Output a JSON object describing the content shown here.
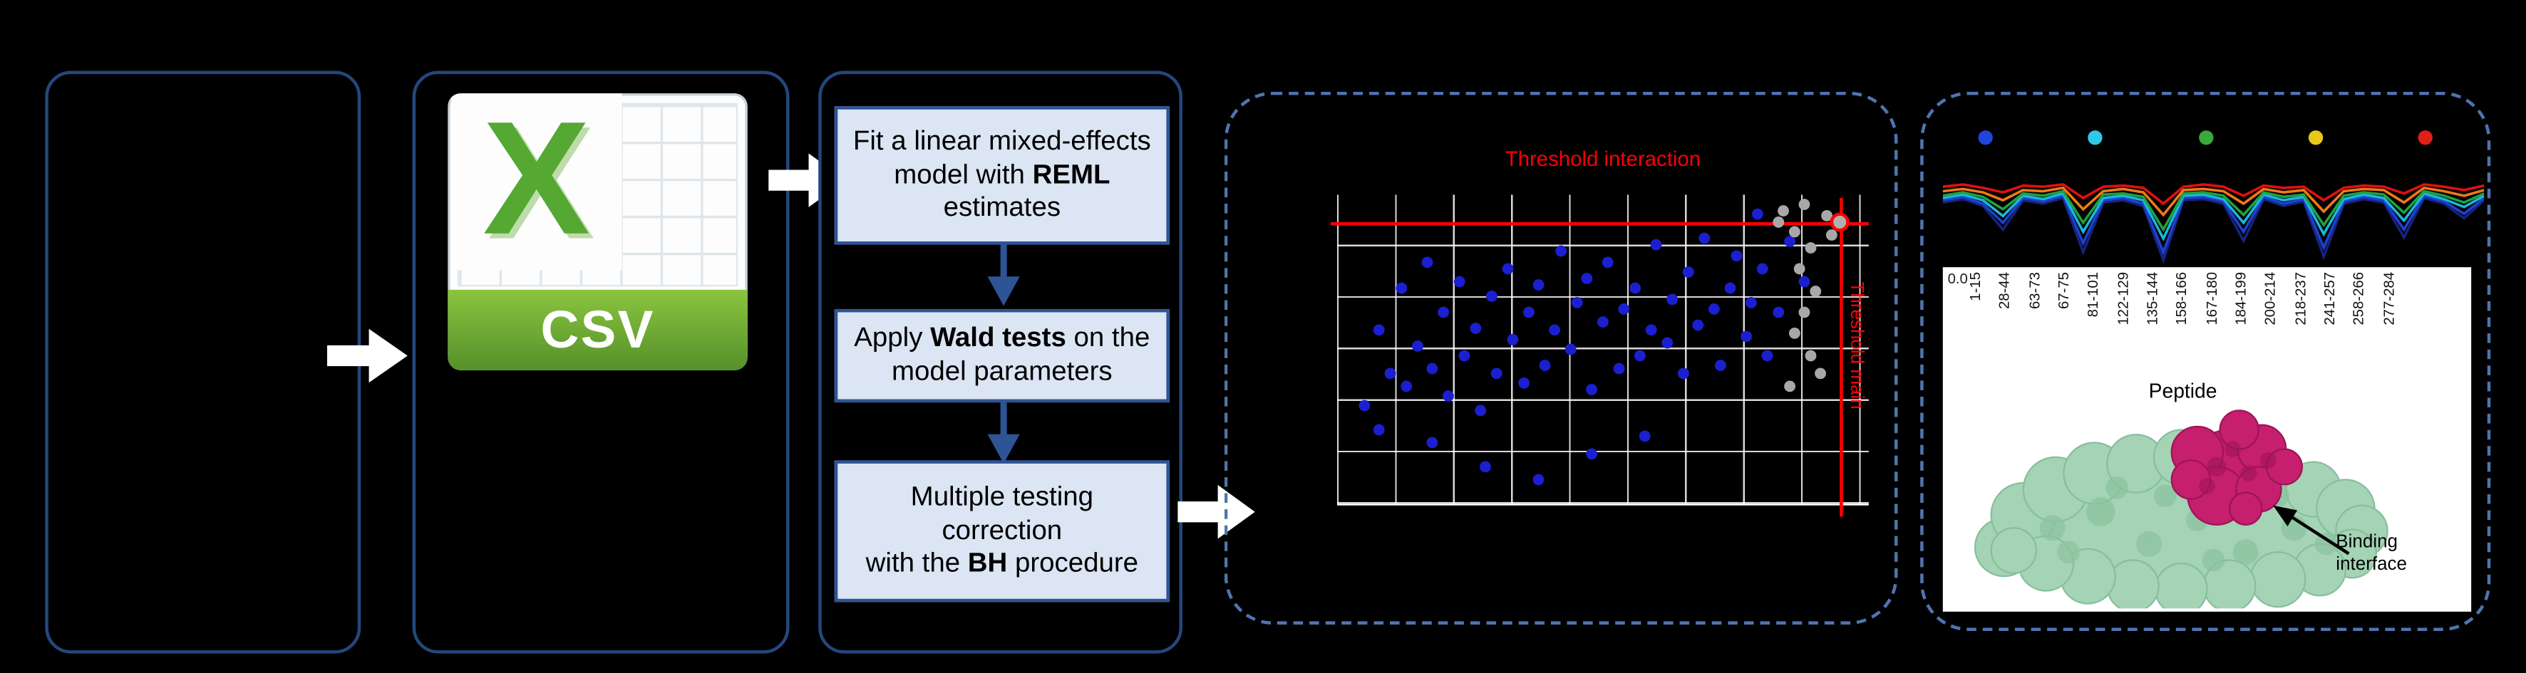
{
  "colors": {
    "background": "#000000",
    "box_border": "#24477c",
    "dashed_border": "#4f74b0",
    "step_fill": "#dbe5f3",
    "step_border": "#2e5496",
    "threshold": "#ff0000",
    "significant_point": "#1c1fd0",
    "nonsignificant_point": "#a8a8a8",
    "csv_green": "#55a832"
  },
  "csv": {
    "x": "X",
    "label": "CSV"
  },
  "steps": [
    {
      "parts": [
        {
          "t": "Fit a linear mixed-effects model with "
        },
        {
          "t": "REML"
        },
        {
          "t": " estimates"
        }
      ]
    },
    {
      "parts": [
        {
          "t": "Apply "
        },
        {
          "t": "Wald tests"
        },
        {
          "t": " on the model parameters"
        }
      ]
    },
    {
      "parts": [
        {
          "t": "Multiple testing correction\nwith the "
        },
        {
          "t": "BH"
        },
        {
          "t": " procedure"
        }
      ]
    }
  ],
  "scatter": {
    "type": "scatter",
    "title": "Threshold interaction",
    "side_label": "Threshold main",
    "threshold_x": 94.5,
    "threshold_y": 9,
    "blue_points": [
      [
        5,
        68
      ],
      [
        8,
        44
      ],
      [
        10,
        58
      ],
      [
        12,
        30
      ],
      [
        13,
        62
      ],
      [
        15,
        49
      ],
      [
        17,
        22
      ],
      [
        18,
        56
      ],
      [
        20,
        38
      ],
      [
        21,
        65
      ],
      [
        23,
        28
      ],
      [
        24,
        52
      ],
      [
        26,
        43
      ],
      [
        27,
        70
      ],
      [
        29,
        33
      ],
      [
        30,
        58
      ],
      [
        32,
        24
      ],
      [
        33,
        47
      ],
      [
        35,
        61
      ],
      [
        36,
        38
      ],
      [
        38,
        29
      ],
      [
        39,
        55
      ],
      [
        41,
        44
      ],
      [
        42,
        18
      ],
      [
        44,
        50
      ],
      [
        45,
        35
      ],
      [
        47,
        27
      ],
      [
        48,
        63
      ],
      [
        50,
        41
      ],
      [
        51,
        22
      ],
      [
        53,
        56
      ],
      [
        54,
        37
      ],
      [
        56,
        30
      ],
      [
        57,
        52
      ],
      [
        59,
        44
      ],
      [
        60,
        16
      ],
      [
        62,
        48
      ],
      [
        63,
        34
      ],
      [
        65,
        58
      ],
      [
        66,
        25
      ],
      [
        68,
        42
      ],
      [
        69,
        14
      ],
      [
        71,
        37
      ],
      [
        72,
        55
      ],
      [
        74,
        30
      ],
      [
        75,
        20
      ],
      [
        77,
        46
      ],
      [
        78,
        35
      ],
      [
        80,
        24
      ],
      [
        81,
        52
      ],
      [
        83,
        38
      ],
      [
        28,
        88
      ],
      [
        38,
        92
      ],
      [
        18,
        80
      ],
      [
        48,
        84
      ],
      [
        58,
        78
      ],
      [
        8,
        76
      ],
      [
        85,
        15
      ],
      [
        88,
        28
      ],
      [
        79,
        6
      ]
    ],
    "gray_points": [
      [
        84,
        5
      ],
      [
        88,
        3
      ],
      [
        92,
        7
      ],
      [
        86,
        12
      ],
      [
        89,
        17
      ],
      [
        87,
        24
      ],
      [
        90,
        31
      ],
      [
        88,
        38
      ],
      [
        86,
        45
      ],
      [
        89,
        52
      ],
      [
        91,
        58
      ],
      [
        85,
        62
      ],
      [
        83,
        9
      ],
      [
        93,
        13
      ]
    ],
    "highlight_point": [
      94.5,
      9
    ]
  },
  "peptide_plot": {
    "type": "line",
    "ytick": "0.0",
    "xlabel": "Peptide",
    "annotation": "Binding interface",
    "legend_colors": [
      "#2244dd",
      "#30c8e8",
      "#3aa83a",
      "#e8c818",
      "#e02018"
    ],
    "peptides": [
      "1-15",
      "28-44",
      "63-73",
      "67-75",
      "81-101",
      "122-129",
      "135-144",
      "158-166",
      "167-180",
      "184-199",
      "200-214",
      "218-237",
      "241-257",
      "258-266",
      "277-284"
    ],
    "series": [
      {
        "name": "navy",
        "color": "#14247e",
        "values": [
          44,
          41,
          47,
          68,
          42,
          45,
          40,
          88,
          44,
          42,
          47,
          95,
          42,
          41,
          45,
          78,
          41,
          47,
          43,
          92,
          45,
          41,
          44,
          75,
          40,
          45,
          58,
          42
        ]
      },
      {
        "name": "blue",
        "color": "#2040d0",
        "values": [
          42,
          39,
          45,
          62,
          40,
          43,
          38,
          80,
          42,
          40,
          45,
          88,
          40,
          39,
          43,
          70,
          39,
          45,
          41,
          84,
          43,
          39,
          42,
          68,
          38,
          43,
          54,
          40
        ]
      },
      {
        "name": "cyan",
        "color": "#18b8d8",
        "values": [
          40,
          37,
          42,
          56,
          38,
          41,
          36,
          70,
          40,
          38,
          42,
          76,
          38,
          37,
          41,
          62,
          37,
          42,
          39,
          72,
          41,
          37,
          40,
          60,
          36,
          41,
          48,
          38
        ]
      },
      {
        "name": "green",
        "color": "#20a040",
        "values": [
          38,
          35,
          39,
          50,
          36,
          38,
          34,
          62,
          37,
          36,
          39,
          68,
          36,
          35,
          38,
          55,
          35,
          39,
          37,
          64,
          38,
          35,
          37,
          53,
          34,
          38,
          44,
          36
        ]
      },
      {
        "name": "orange",
        "color": "#f07818",
        "values": [
          34,
          32,
          35,
          42,
          33,
          34,
          31,
          50,
          34,
          32,
          35,
          55,
          33,
          32,
          34,
          45,
          32,
          35,
          33,
          52,
          34,
          32,
          33,
          44,
          31,
          34,
          38,
          33
        ]
      },
      {
        "name": "red",
        "color": "#e01010",
        "values": [
          30,
          28,
          31,
          35,
          29,
          30,
          28,
          40,
          30,
          29,
          31,
          45,
          30,
          28,
          30,
          38,
          29,
          31,
          30,
          42,
          31,
          29,
          30,
          36,
          28,
          30,
          33,
          29
        ]
      }
    ]
  }
}
